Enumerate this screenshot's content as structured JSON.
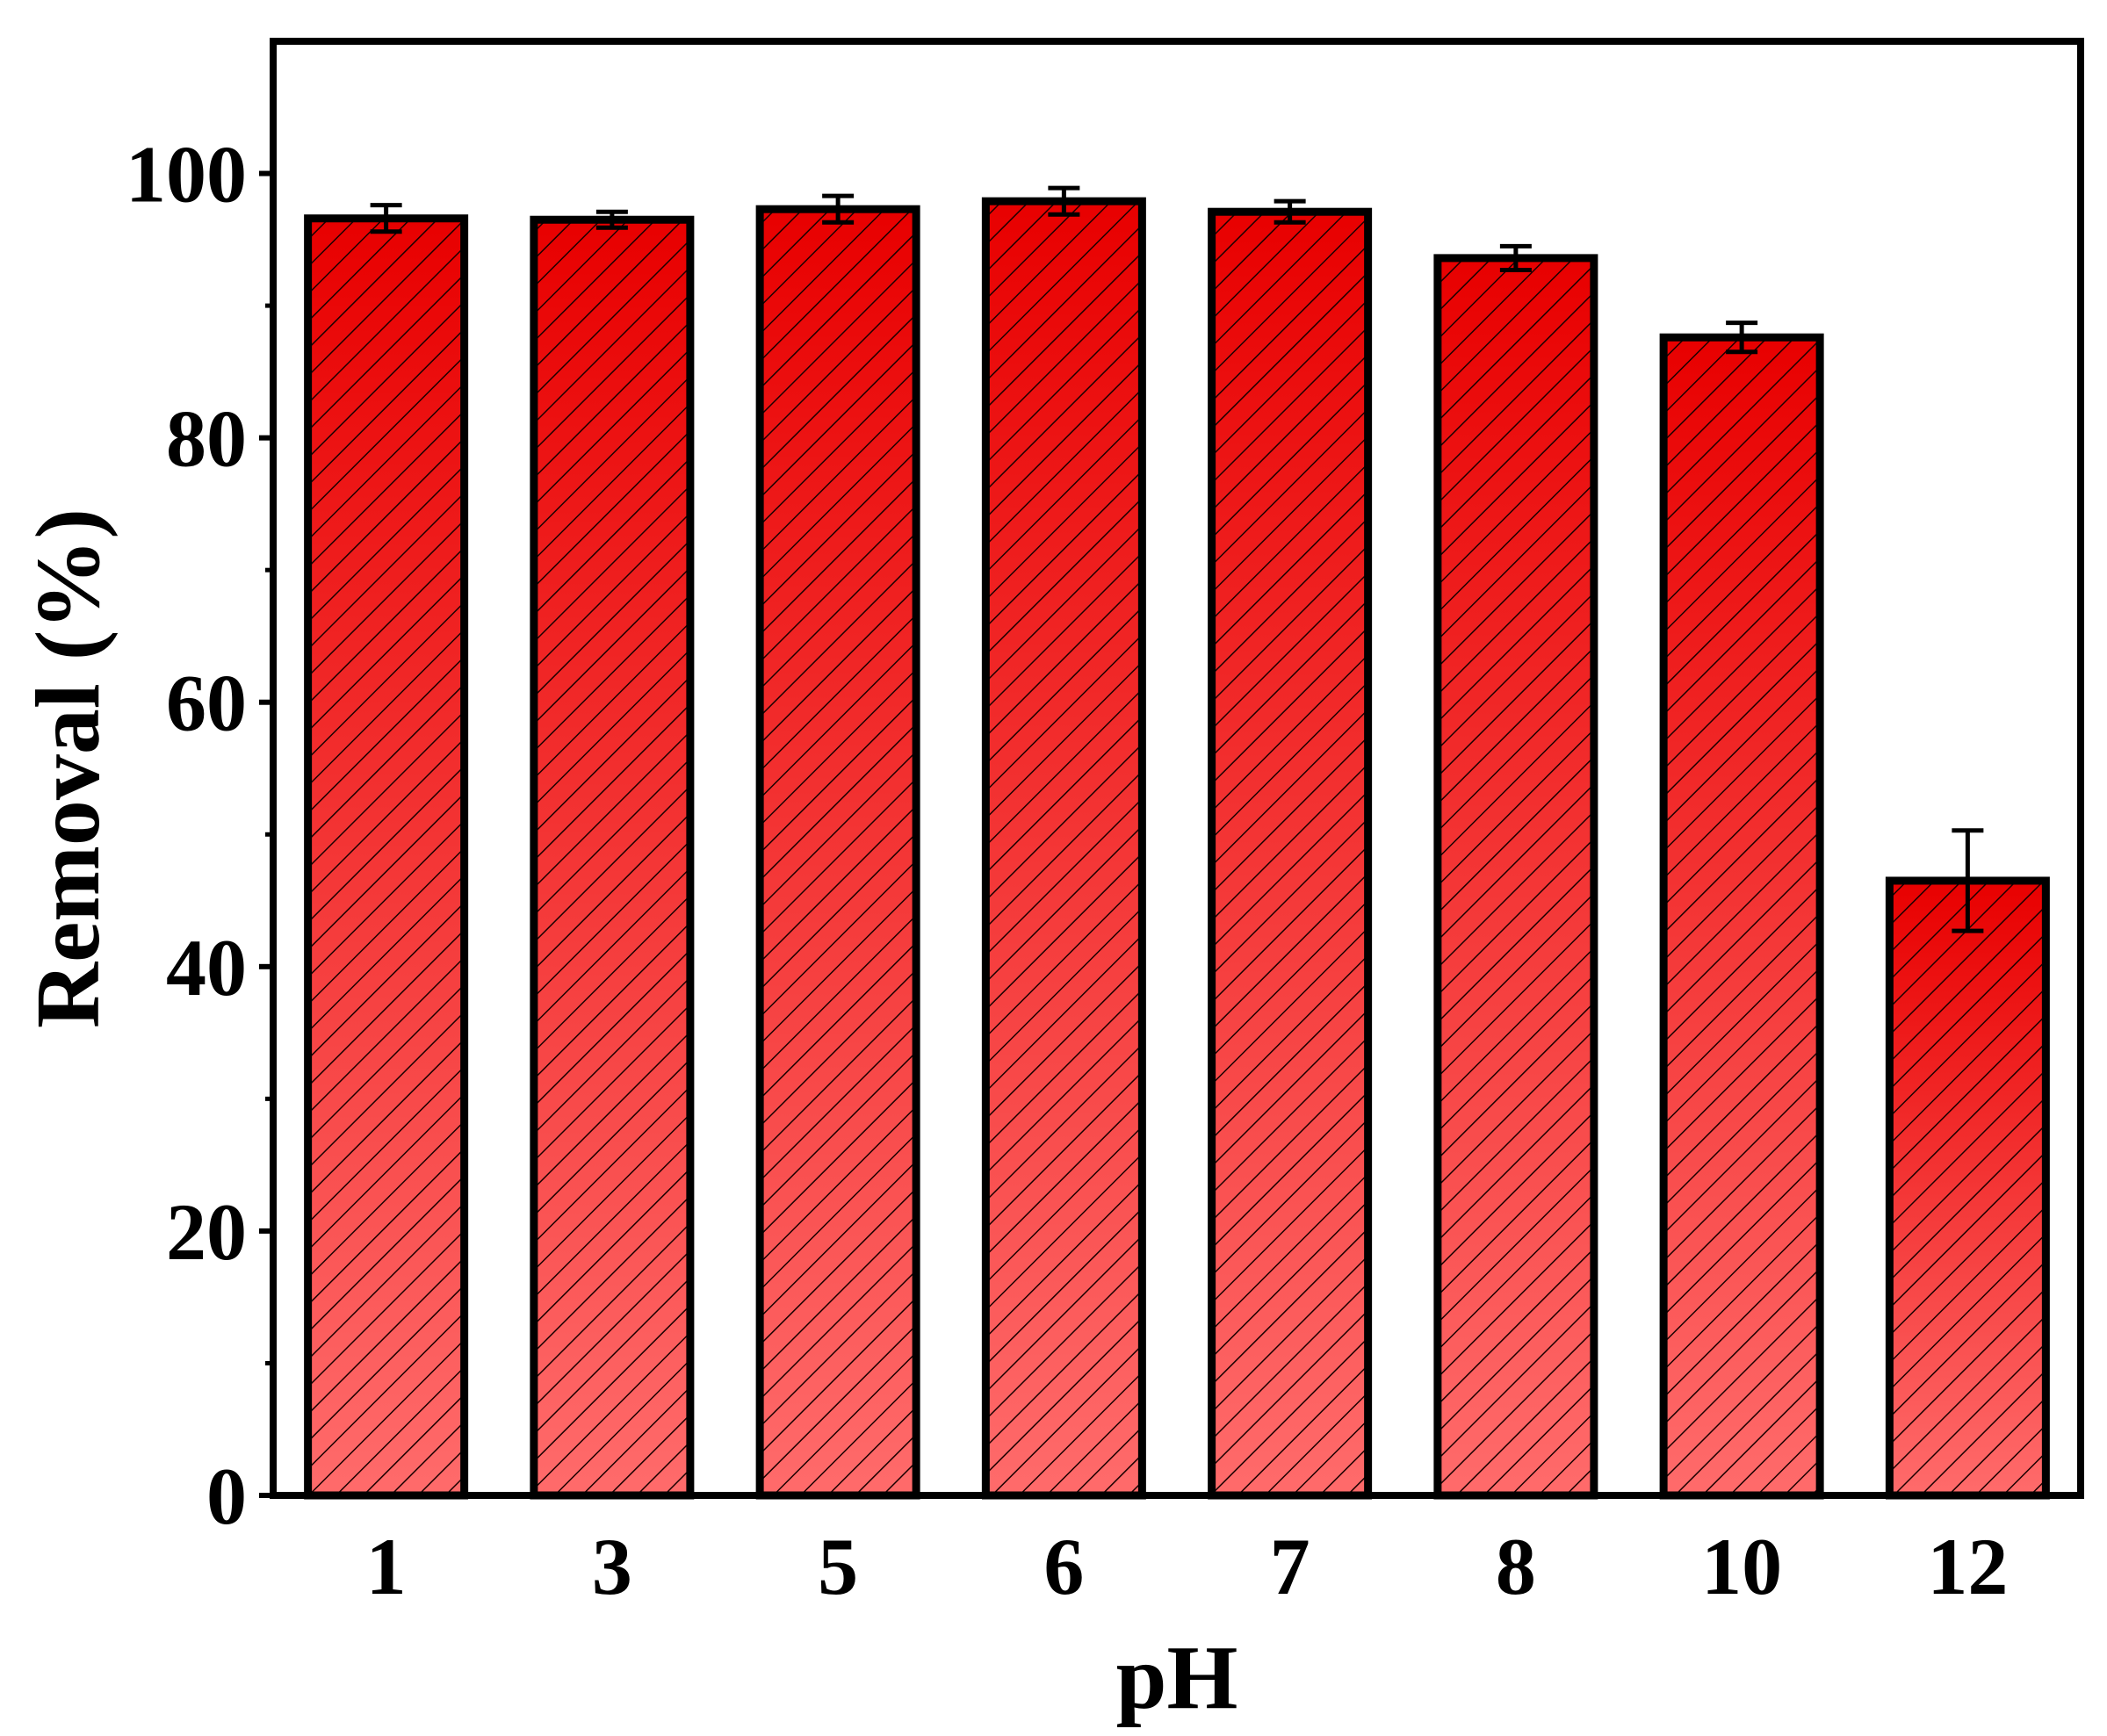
{
  "chart_data": {
    "type": "bar",
    "xlabel": "pH",
    "ylabel": "Removal (%)",
    "categories": [
      "1",
      "3",
      "5",
      "6",
      "7",
      "8",
      "10",
      "12"
    ],
    "values": [
      96.6,
      96.5,
      97.3,
      97.9,
      97.1,
      93.6,
      87.6,
      46.5
    ],
    "errors": [
      1.0,
      0.6,
      1.0,
      1.0,
      0.8,
      0.9,
      1.1,
      3.8
    ],
    "ylim": [
      0,
      110
    ],
    "yticks": [
      0,
      20,
      40,
      60,
      80,
      100
    ],
    "ytick_labels": [
      "0",
      "20",
      "40",
      "60",
      "80",
      "100"
    ],
    "grid": false,
    "legend": "none",
    "colors": {
      "bar_top": "#e80000",
      "bar_bottom": "#ff6b6b",
      "hatch": "#1a0000",
      "edge": "#000000"
    }
  }
}
